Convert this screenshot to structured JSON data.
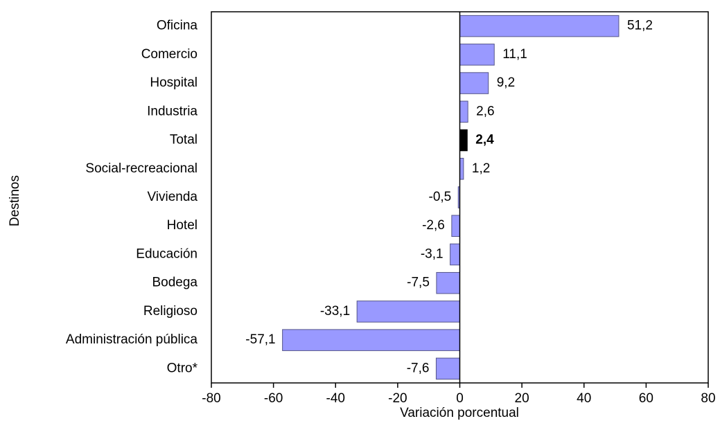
{
  "chart_data": {
    "type": "hbar",
    "categories": [
      "Oficina",
      "Comercio",
      "Hospital",
      "Industria",
      "Total",
      "Social-recreacional",
      "Vivienda",
      "Hotel",
      "Educación",
      "Bodega",
      "Religioso",
      "Administración pública",
      "Otro*"
    ],
    "values": [
      51.2,
      11.1,
      9.2,
      2.6,
      2.4,
      1.2,
      -0.5,
      -2.6,
      -3.1,
      -7.5,
      -33.1,
      -57.1,
      -7.6
    ],
    "value_labels": [
      "51,2",
      "11,1",
      "9,2",
      "2,6",
      "2,4",
      "1,2",
      "-0,5",
      "-2,6",
      "-3,1",
      "-7,5",
      "-33,1",
      "-57,1",
      "-7,6"
    ],
    "colors": [
      "#9999ff",
      "#9999ff",
      "#9999ff",
      "#9999ff",
      "#000000",
      "#9999ff",
      "#9999ff",
      "#9999ff",
      "#9999ff",
      "#9999ff",
      "#9999ff",
      "#9999ff",
      "#9999ff"
    ],
    "xlim": [
      -80,
      80
    ],
    "xticks": [
      -80,
      -60,
      -40,
      -20,
      0,
      20,
      40,
      60,
      80
    ],
    "xlabel": "Variación porcentual",
    "ylabel": "Destinos",
    "grid": false
  }
}
